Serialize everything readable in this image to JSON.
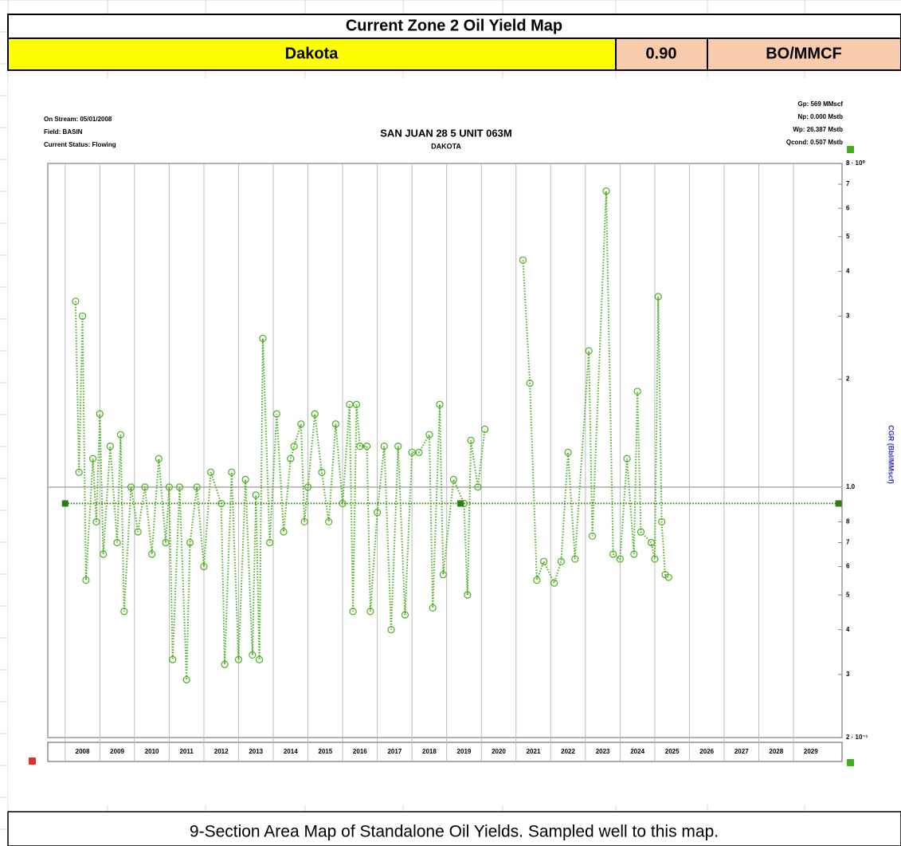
{
  "sheet": {
    "title": "Current Zone 2 Oil Yield Map",
    "formation": "Dakota",
    "yield_value": "0.90",
    "yield_unit": "BO/MMCF",
    "caption": "9-Section Area Map of Standalone Oil Yields. Sampled well to this map."
  },
  "chart_data": {
    "type": "scatter",
    "title": "SAN JUAN 28 5 UNIT 063M",
    "subtitle": "DAKOTA",
    "info_left": [
      "On Stream: 05/01/2008",
      "Field: BASIN",
      "Current Status: Flowing"
    ],
    "info_right": [
      "Gp: 569 MMscf",
      "Np: 0.000 Mstb",
      "Wp: 26.387 Mstb",
      "Qcond: 0.507 Mstb"
    ],
    "y_label": "CGR (Bbl/MMscf)",
    "log_y": true,
    "xlim": [
      2007.5,
      2030.4
    ],
    "xticks": [
      2008,
      2009,
      2010,
      2011,
      2012,
      2013,
      2014,
      2015,
      2016,
      2017,
      2018,
      2019,
      2020,
      2021,
      2022,
      2023,
      2024,
      2025,
      2026,
      2027,
      2028,
      2029
    ],
    "ylim": [
      0.2,
      8
    ],
    "yticks": [
      {
        "value": 0.2,
        "label": "2 · 10⁻¹"
      },
      {
        "value": 0.3,
        "label": "3"
      },
      {
        "value": 0.4,
        "label": "4"
      },
      {
        "value": 0.5,
        "label": "5"
      },
      {
        "value": 0.6,
        "label": "6"
      },
      {
        "value": 0.7,
        "label": "7"
      },
      {
        "value": 0.8,
        "label": "8"
      },
      {
        "value": 1,
        "label": "1.0"
      },
      2,
      3,
      4,
      5,
      6,
      7,
      {
        "value": 8,
        "label": "8 · 10⁰"
      }
    ],
    "series": [
      {
        "color": "#4caf20",
        "style": "dotted-markers",
        "x": [
          2008.3,
          2008.4,
          2008.5,
          2008.6,
          2008.8,
          2008.9,
          2009.0,
          2009.1,
          2009.3,
          2009.5,
          2009.6,
          2009.7,
          2009.9,
          2010.1,
          2010.3,
          2010.5,
          2010.7,
          2010.9,
          2011.0,
          2011.1,
          2011.3,
          2011.5,
          2011.6,
          2011.8,
          2012.0,
          2012.2,
          2012.5,
          2012.6,
          2012.8,
          2013.0,
          2013.2,
          2013.4,
          2013.5,
          2013.6,
          2013.7,
          2013.9,
          2014.1,
          2014.3,
          2014.5,
          2014.6,
          2014.8,
          2014.9,
          2015.0,
          2015.2,
          2015.4,
          2015.6,
          2015.8,
          2016.0,
          2016.2,
          2016.3,
          2016.4,
          2016.5,
          2016.7,
          2016.8,
          2017.0,
          2017.2,
          2017.4,
          2017.6,
          2017.8,
          2018.0,
          2018.2,
          2018.5,
          2018.6,
          2018.8,
          2018.9,
          2019.2,
          2019.5,
          2019.6,
          2019.7,
          2019.9,
          2020.1,
          2020.6,
          2021.2,
          2021.4,
          2021.6,
          2021.8,
          2022.1,
          2022.3,
          2022.5,
          2022.7,
          2023.1,
          2023.2,
          2023.6,
          2023.8,
          2024.0,
          2024.2,
          2024.4,
          2024.5,
          2024.6,
          2024.9,
          2025.0,
          2025.1,
          2025.2,
          2025.3,
          2025.4
        ],
        "values": [
          3.3,
          1.1,
          3.0,
          0.55,
          1.2,
          0.8,
          1.6,
          0.65,
          1.3,
          0.7,
          1.4,
          0.45,
          1.0,
          0.75,
          1.0,
          0.65,
          1.2,
          0.7,
          1.0,
          0.33,
          1.0,
          0.29,
          0.7,
          1.0,
          0.6,
          1.1,
          0.9,
          0.32,
          1.1,
          0.33,
          1.05,
          0.34,
          0.95,
          0.33,
          2.6,
          0.7,
          1.6,
          0.75,
          1.2,
          1.3,
          1.5,
          0.8,
          1.0,
          1.6,
          1.1,
          0.8,
          1.5,
          0.9,
          1.7,
          0.45,
          1.7,
          1.3,
          1.3,
          0.45,
          0.85,
          1.3,
          0.4,
          1.3,
          0.44,
          1.25,
          1.25,
          1.4,
          0.46,
          1.7,
          0.57,
          1.05,
          0.9,
          0.5,
          1.35,
          1.0,
          1.45,
          null,
          4.3,
          1.95,
          0.55,
          0.62,
          0.54,
          0.62,
          1.25,
          0.63,
          2.4,
          0.73,
          6.7,
          0.65,
          0.63,
          1.2,
          0.65,
          1.85,
          0.75,
          0.7,
          0.63,
          3.4,
          0.8,
          0.57,
          0.56
        ]
      },
      {
        "color": "#2e7d12",
        "style": "forecast",
        "x": [
          2008,
          2019.4,
          2030.3
        ],
        "values": [
          0.9,
          0.9,
          0.9
        ]
      }
    ]
  }
}
